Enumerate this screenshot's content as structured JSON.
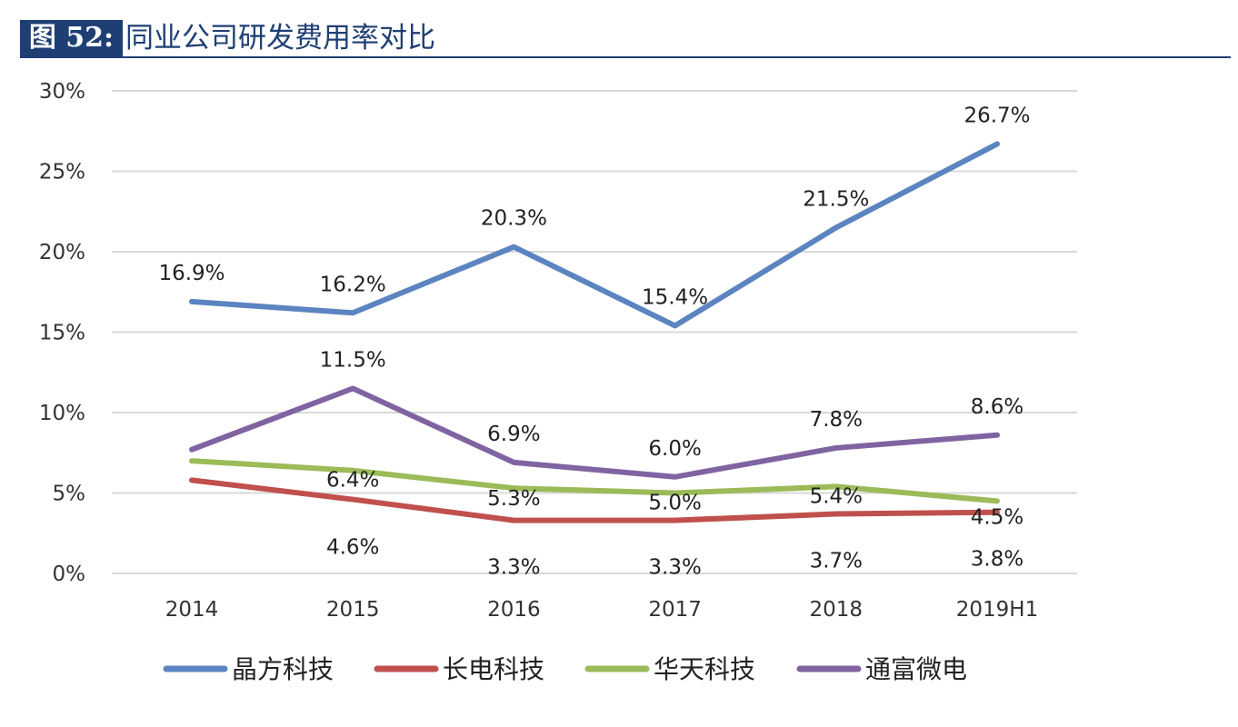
{
  "figure": {
    "label": "图 52:",
    "title": "同业公司研发费用率对比"
  },
  "chart_data": {
    "type": "line",
    "categories": [
      "2014",
      "2015",
      "2016",
      "2017",
      "2018",
      "2019H1"
    ],
    "ylim": [
      0,
      30
    ],
    "yticks": [
      0,
      5,
      10,
      15,
      20,
      25,
      30
    ],
    "ytick_labels": [
      "0%",
      "5%",
      "10%",
      "15%",
      "20%",
      "25%",
      "30%"
    ],
    "grid": true,
    "legend_position": "bottom",
    "series": [
      {
        "name": "晶方科技",
        "color": "#5b84c0",
        "values": [
          16.9,
          16.2,
          20.3,
          15.4,
          21.5,
          26.7
        ],
        "labels": [
          "16.9%",
          "16.2%",
          "20.3%",
          "15.4%",
          "21.5%",
          "26.7%"
        ],
        "label_visible": [
          true,
          true,
          true,
          true,
          true,
          true
        ]
      },
      {
        "name": "长电科技",
        "color": "#c0504d",
        "values": [
          5.8,
          4.6,
          3.3,
          3.3,
          3.7,
          3.8
        ],
        "labels": [
          "5.8%",
          "4.6%",
          "3.3%",
          "3.3%",
          "3.7%",
          "3.8%"
        ],
        "label_visible": [
          false,
          true,
          true,
          true,
          true,
          true
        ]
      },
      {
        "name": "华天科技",
        "color": "#9bbb59",
        "values": [
          7.0,
          6.4,
          5.3,
          5.0,
          5.4,
          4.5
        ],
        "labels": [
          "7.0%",
          "6.4%",
          "5.3%",
          "5.0%",
          "5.4%",
          "4.5%"
        ],
        "label_visible": [
          false,
          true,
          true,
          true,
          true,
          true
        ]
      },
      {
        "name": "通富微电",
        "color": "#8064a2",
        "values": [
          7.7,
          11.5,
          6.9,
          6.0,
          7.8,
          8.6
        ],
        "labels": [
          "7.7%",
          "11.5%",
          "6.9%",
          "6.0%",
          "7.8%",
          "8.6%"
        ],
        "label_visible": [
          false,
          true,
          true,
          true,
          true,
          true
        ]
      }
    ]
  }
}
